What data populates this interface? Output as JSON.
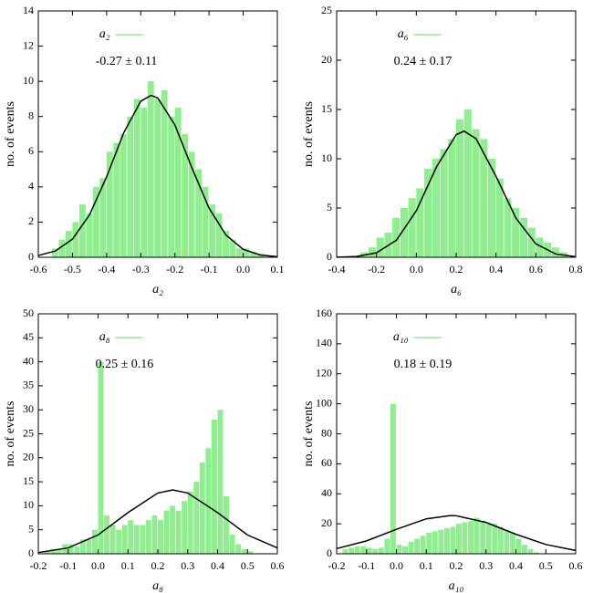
{
  "chart_data": [
    {
      "type": "histogram",
      "xlabel": "a₂",
      "ylabel": "no. of events",
      "annotation": "-0.27 ± 0.11",
      "legend": "top-left",
      "xlim": [
        -0.6,
        0.1
      ],
      "ylim": [
        0,
        14
      ],
      "xticks": [
        -0.6,
        -0.5,
        -0.4,
        -0.3,
        -0.2,
        -0.1,
        {
          "value": 0,
          "label": "0.0"
        },
        0.1
      ],
      "yticks": [
        0,
        2,
        4,
        6,
        8,
        10,
        12,
        14
      ],
      "series": [
        {
          "name": "a₂",
          "color": "#90ee90",
          "bins": [
            -0.56,
            -0.54,
            -0.52,
            -0.5,
            -0.48,
            -0.46,
            -0.44,
            -0.42,
            -0.4,
            -0.38,
            -0.36,
            -0.34,
            -0.32,
            -0.3,
            -0.28,
            -0.26,
            -0.24,
            -0.22,
            -0.2,
            -0.18,
            -0.16,
            -0.14,
            -0.12,
            -0.1,
            -0.08,
            -0.06,
            -0.04,
            -0.02,
            0,
            0.02,
            0.04,
            0.06
          ],
          "values": [
            0.5,
            1,
            1.5,
            2,
            3,
            2.5,
            4,
            4.5,
            6,
            6.5,
            7,
            8,
            9,
            8.5,
            10,
            9,
            9.5,
            8,
            8.5,
            7,
            6,
            5,
            4,
            3,
            2.5,
            1.5,
            1,
            0.5,
            0.5,
            0.3,
            0.2
          ]
        }
      ],
      "curve": {
        "color": "#000000",
        "x": [
          -0.6,
          -0.55,
          -0.5,
          -0.45,
          -0.4,
          -0.35,
          -0.3,
          -0.27,
          -0.25,
          -0.2,
          -0.15,
          -0.1,
          -0.05,
          0,
          0.05,
          0.1
        ],
        "values": [
          0.1,
          0.36,
          1.03,
          2.41,
          4.57,
          7.07,
          8.87,
          9.2,
          9.05,
          7.52,
          5.07,
          2.79,
          1.25,
          0.45,
          0.13,
          0.03
        ]
      }
    },
    {
      "type": "histogram",
      "xlabel": "a₆",
      "ylabel": "no. of events",
      "annotation": "0.24 ± 0.17",
      "legend": "top-left",
      "xlim": [
        -0.4,
        0.8
      ],
      "ylim": [
        0,
        25
      ],
      "xticks": [
        -0.4,
        -0.2,
        {
          "value": 0,
          "label": "0.0"
        },
        0.2,
        0.4,
        0.6,
        0.8
      ],
      "yticks": [
        0,
        5,
        10,
        15,
        20,
        25
      ],
      "series": [
        {
          "name": "a₆",
          "color": "#90ee90",
          "bins": [
            -0.28,
            -0.24,
            -0.2,
            -0.16,
            -0.12,
            -0.08,
            -0.04,
            0,
            0.04,
            0.08,
            0.12,
            0.16,
            0.2,
            0.24,
            0.28,
            0.32,
            0.36,
            0.4,
            0.44,
            0.48,
            0.52,
            0.56,
            0.6,
            0.64,
            0.68,
            0.72,
            0.76
          ],
          "values": [
            0.5,
            1,
            2,
            2.5,
            4,
            5,
            6,
            7,
            9,
            10,
            11,
            12,
            14,
            15,
            13,
            12,
            10,
            8,
            6,
            5,
            4,
            3,
            2,
            1.5,
            1,
            0.5
          ]
        }
      ],
      "curve": {
        "color": "#000000",
        "x": [
          -0.4,
          -0.3,
          -0.2,
          -0.1,
          0,
          0.1,
          0.2,
          0.24,
          0.3,
          0.4,
          0.5,
          0.6,
          0.7,
          0.8
        ],
        "values": [
          0.01,
          0.08,
          0.45,
          1.73,
          4.72,
          9.12,
          12.44,
          12.8,
          12.03,
          8.22,
          3.97,
          1.36,
          0.33,
          0.06
        ]
      }
    },
    {
      "type": "histogram",
      "xlabel": "a₈",
      "ylabel": "no. of events",
      "annotation": "0.25 ± 0.16",
      "legend": "top-left",
      "xlim": [
        -0.2,
        0.6
      ],
      "ylim": [
        0,
        50
      ],
      "xticks": [
        -0.2,
        -0.1,
        {
          "value": 0,
          "label": "0.0"
        },
        0.1,
        0.2,
        0.3,
        0.4,
        0.5,
        0.6
      ],
      "yticks": [
        0,
        5,
        10,
        15,
        20,
        25,
        30,
        35,
        40,
        45,
        50
      ],
      "series": [
        {
          "name": "a₈",
          "color": "#90ee90",
          "bins": [
            -0.18,
            -0.16,
            -0.14,
            -0.12,
            -0.1,
            -0.08,
            -0.06,
            -0.04,
            -0.02,
            0,
            0.02,
            0.04,
            0.06,
            0.08,
            0.1,
            0.12,
            0.14,
            0.16,
            0.18,
            0.2,
            0.22,
            0.24,
            0.26,
            0.28,
            0.3,
            0.32,
            0.34,
            0.36,
            0.38,
            0.4,
            0.42,
            0.44,
            0.46,
            0.48,
            0.5,
            0.52
          ],
          "values": [
            0.5,
            1,
            1,
            2,
            2,
            1.5,
            3,
            3,
            5,
            40,
            8,
            6,
            5,
            6,
            7,
            6,
            6,
            7,
            8,
            7,
            9,
            10,
            9,
            11,
            13,
            15,
            19,
            22,
            28,
            30,
            12,
            4,
            2,
            1,
            0.5
          ]
        }
      ],
      "curve": {
        "color": "#000000",
        "x": [
          -0.2,
          -0.1,
          0,
          0.1,
          0.2,
          0.25,
          0.3,
          0.4,
          0.5,
          0.6
        ],
        "values": [
          0.25,
          1.22,
          3.92,
          8.57,
          12.66,
          13.3,
          12.66,
          8.57,
          3.92,
          1.22
        ]
      }
    },
    {
      "type": "histogram",
      "xlabel": "a₁₀",
      "ylabel": "no. of events",
      "annotation": "0.18 ± 0.19",
      "legend": "top-left",
      "xlim": [
        -0.2,
        0.6
      ],
      "ylim": [
        0,
        160
      ],
      "xticks": [
        -0.2,
        -0.1,
        {
          "value": 0,
          "label": "0.0"
        },
        0.1,
        0.2,
        0.3,
        0.4,
        0.5,
        0.6
      ],
      "yticks": [
        0,
        20,
        40,
        60,
        80,
        100,
        120,
        140,
        160
      ],
      "series": [
        {
          "name": "a₁₀",
          "color": "#90ee90",
          "bins": [
            -0.18,
            -0.16,
            -0.14,
            -0.12,
            -0.1,
            -0.08,
            -0.06,
            -0.04,
            -0.02,
            0,
            0.02,
            0.04,
            0.06,
            0.08,
            0.1,
            0.12,
            0.14,
            0.16,
            0.18,
            0.2,
            0.22,
            0.24,
            0.26,
            0.28,
            0.3,
            0.32,
            0.34,
            0.36,
            0.38,
            0.4,
            0.42,
            0.44,
            0.46,
            0.48
          ],
          "values": [
            3,
            4,
            5,
            5,
            4,
            3,
            4,
            10,
            100,
            6,
            5,
            8,
            10,
            12,
            14,
            15,
            16,
            17,
            18,
            20,
            21,
            22,
            24,
            22,
            20,
            20,
            18,
            16,
            14,
            10,
            6,
            3,
            1
          ]
        }
      ],
      "curve": {
        "color": "#000000",
        "x": [
          -0.2,
          -0.1,
          0,
          0.1,
          0.18,
          0.2,
          0.3,
          0.4,
          0.5,
          0.6
        ],
        "values": [
          3.45,
          8.6,
          16.3,
          23.3,
          25.5,
          25.36,
          20.9,
          13.0,
          6.2,
          2.2
        ]
      }
    }
  ]
}
